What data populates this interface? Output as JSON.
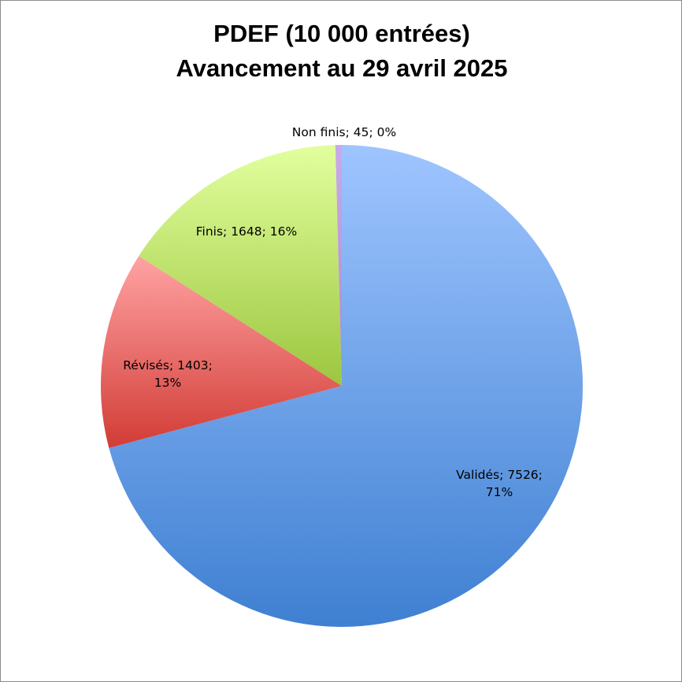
{
  "chart_data": {
    "type": "pie",
    "title_line1": "PDEF (10 000 entrées)",
    "title_line2": "Avancement au 29 avril 2025",
    "start_angle_deg": 0,
    "direction": "clockwise",
    "slices": [
      {
        "name": "Validés",
        "value": 7526,
        "percent_label": "71%",
        "label": [
          "Validés; 7526;",
          "71%"
        ],
        "color_top": "#9fc5ff",
        "color_bottom": "#3f80d2"
      },
      {
        "name": "Révisés",
        "value": 1403,
        "percent_label": "13%",
        "label": [
          "Révisés; 1403;",
          "13%"
        ],
        "color_top": "#ffa3a3",
        "color_bottom": "#d23c36"
      },
      {
        "name": "Finis",
        "value": 1648,
        "percent_label": "16%",
        "label": [
          "Finis; 1648; 16%"
        ],
        "color_top": "#e2ff9e",
        "color_bottom": "#9cc63f"
      },
      {
        "name": "Non finis",
        "value": 45,
        "percent_label": "0%",
        "label": [
          "Non finis; 45; 0%"
        ],
        "color_top": "#c9aaea",
        "color_bottom": "#a88ad0"
      }
    ]
  }
}
